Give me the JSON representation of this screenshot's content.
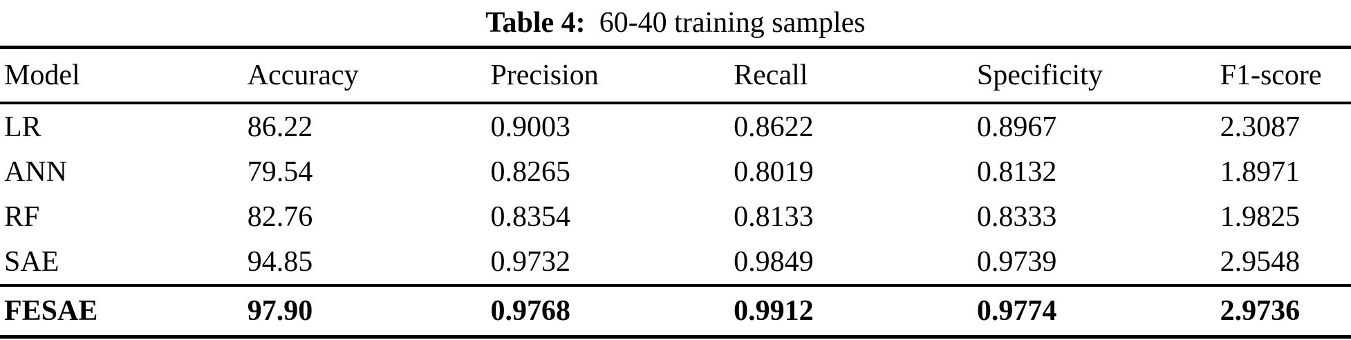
{
  "caption": {
    "label": "Table 4:",
    "text": "60-40 training samples"
  },
  "table": {
    "columns": [
      "Model",
      "Accuracy",
      "Precision",
      "Recall",
      "Specificity",
      "F1-score"
    ],
    "rows": [
      {
        "model": "LR",
        "accuracy": "86.22",
        "precision": "0.9003",
        "recall": "0.8622",
        "specificity": "0.8967",
        "f1": "2.3087"
      },
      {
        "model": "ANN",
        "accuracy": "79.54",
        "precision": "0.8265",
        "recall": "0.8019",
        "specificity": "0.8132",
        "f1": "1.8971"
      },
      {
        "model": "RF",
        "accuracy": "82.76",
        "precision": "0.8354",
        "recall": "0.8133",
        "specificity": "0.8333",
        "f1": "1.9825"
      },
      {
        "model": "SAE",
        "accuracy": "94.85",
        "precision": "0.9732",
        "recall": "0.9849",
        "specificity": "0.9739",
        "f1": "2.9548"
      },
      {
        "model": "FESAE",
        "accuracy": "97.90",
        "precision": "0.9768",
        "recall": "0.9912",
        "specificity": "0.9774",
        "f1": "2.9736"
      }
    ]
  },
  "colors": {
    "text": "#000000",
    "background": "#ffffff",
    "rule": "#000000"
  }
}
